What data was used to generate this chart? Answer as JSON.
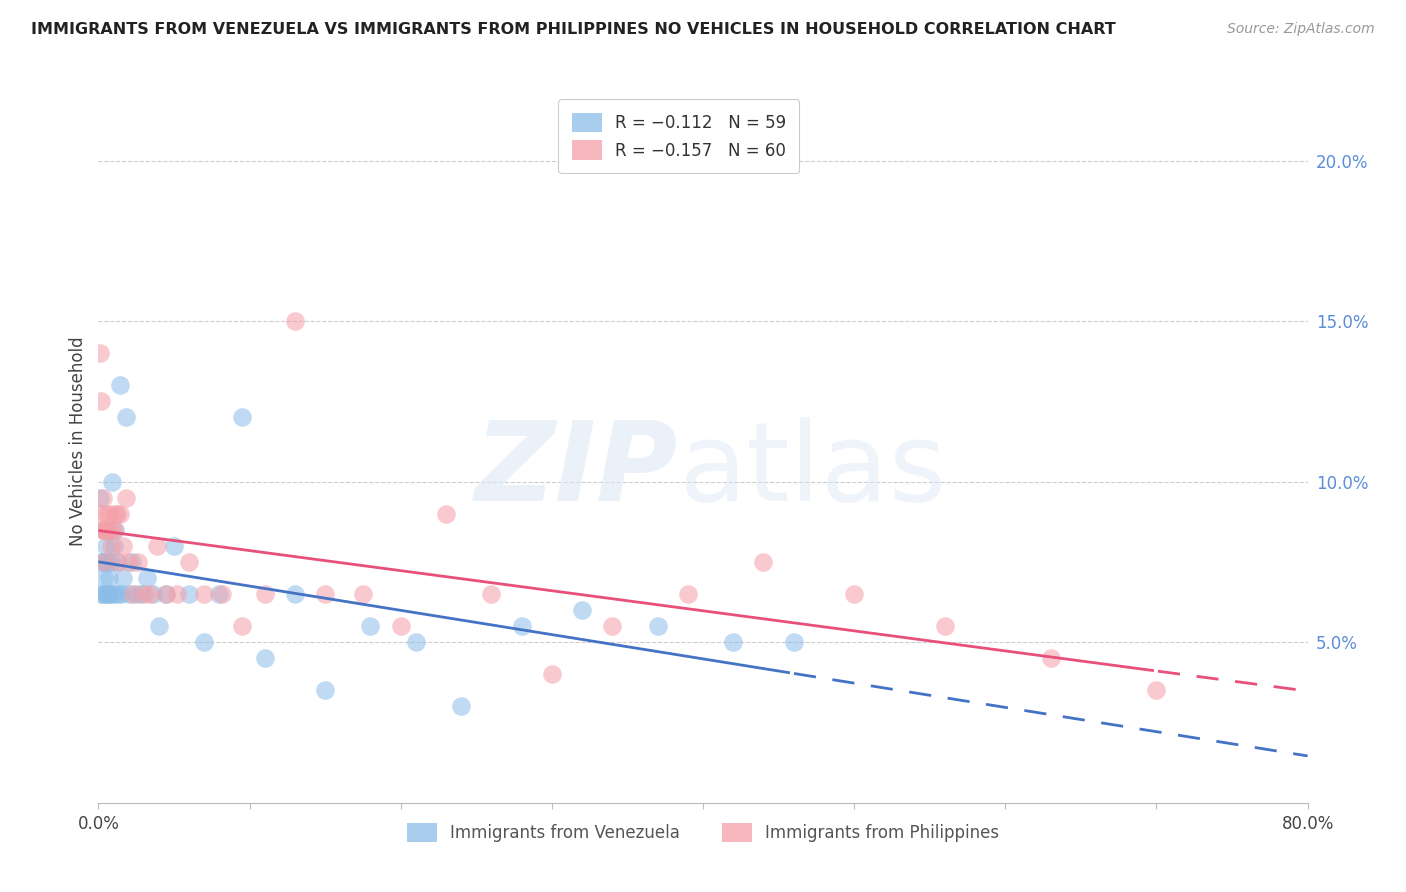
{
  "title": "IMMIGRANTS FROM VENEZUELA VS IMMIGRANTS FROM PHILIPPINES NO VEHICLES IN HOUSEHOLD CORRELATION CHART",
  "source": "Source: ZipAtlas.com",
  "ylabel": "No Vehicles in Household",
  "right_yticks": [
    "20.0%",
    "15.0%",
    "10.0%",
    "5.0%"
  ],
  "right_ytick_vals": [
    0.2,
    0.15,
    0.1,
    0.05
  ],
  "xlim": [
    0.0,
    0.8
  ],
  "ylim": [
    0.0,
    0.225
  ],
  "color_venezuela": "#8bbde8",
  "color_philippines": "#f4a0a8",
  "color_right_axis": "#5b8dd9",
  "venezuela_x": [
    0.001,
    0.002,
    0.002,
    0.003,
    0.003,
    0.004,
    0.004,
    0.005,
    0.005,
    0.006,
    0.006,
    0.007,
    0.007,
    0.008,
    0.008,
    0.009,
    0.01,
    0.01,
    0.011,
    0.012,
    0.013,
    0.014,
    0.015,
    0.016,
    0.018,
    0.02,
    0.022,
    0.025,
    0.028,
    0.032,
    0.036,
    0.04,
    0.045,
    0.05,
    0.06,
    0.07,
    0.08,
    0.095,
    0.11,
    0.13,
    0.15,
    0.18,
    0.21,
    0.24,
    0.28,
    0.32,
    0.37,
    0.42,
    0.46
  ],
  "venezuela_y": [
    0.095,
    0.075,
    0.065,
    0.065,
    0.075,
    0.07,
    0.085,
    0.065,
    0.08,
    0.075,
    0.065,
    0.07,
    0.065,
    0.075,
    0.065,
    0.1,
    0.065,
    0.08,
    0.085,
    0.075,
    0.065,
    0.13,
    0.065,
    0.07,
    0.12,
    0.065,
    0.075,
    0.065,
    0.065,
    0.07,
    0.065,
    0.055,
    0.065,
    0.08,
    0.065,
    0.05,
    0.065,
    0.12,
    0.045,
    0.065,
    0.035,
    0.055,
    0.05,
    0.03,
    0.055,
    0.06,
    0.055,
    0.05,
    0.05
  ],
  "philippines_x": [
    0.001,
    0.002,
    0.002,
    0.003,
    0.003,
    0.004,
    0.004,
    0.005,
    0.005,
    0.006,
    0.007,
    0.008,
    0.009,
    0.01,
    0.011,
    0.012,
    0.013,
    0.014,
    0.016,
    0.018,
    0.02,
    0.023,
    0.026,
    0.03,
    0.034,
    0.039,
    0.045,
    0.052,
    0.06,
    0.07,
    0.082,
    0.095,
    0.11,
    0.13,
    0.15,
    0.175,
    0.2,
    0.23,
    0.26,
    0.3,
    0.34,
    0.39,
    0.44,
    0.5,
    0.56,
    0.63,
    0.7
  ],
  "philippines_y": [
    0.14,
    0.125,
    0.09,
    0.095,
    0.085,
    0.085,
    0.075,
    0.09,
    0.085,
    0.085,
    0.09,
    0.08,
    0.085,
    0.085,
    0.09,
    0.09,
    0.075,
    0.09,
    0.08,
    0.095,
    0.075,
    0.065,
    0.075,
    0.065,
    0.065,
    0.08,
    0.065,
    0.065,
    0.075,
    0.065,
    0.065,
    0.055,
    0.065,
    0.15,
    0.065,
    0.065,
    0.055,
    0.09,
    0.065,
    0.04,
    0.055,
    0.065,
    0.075,
    0.065,
    0.055,
    0.045,
    0.035
  ]
}
